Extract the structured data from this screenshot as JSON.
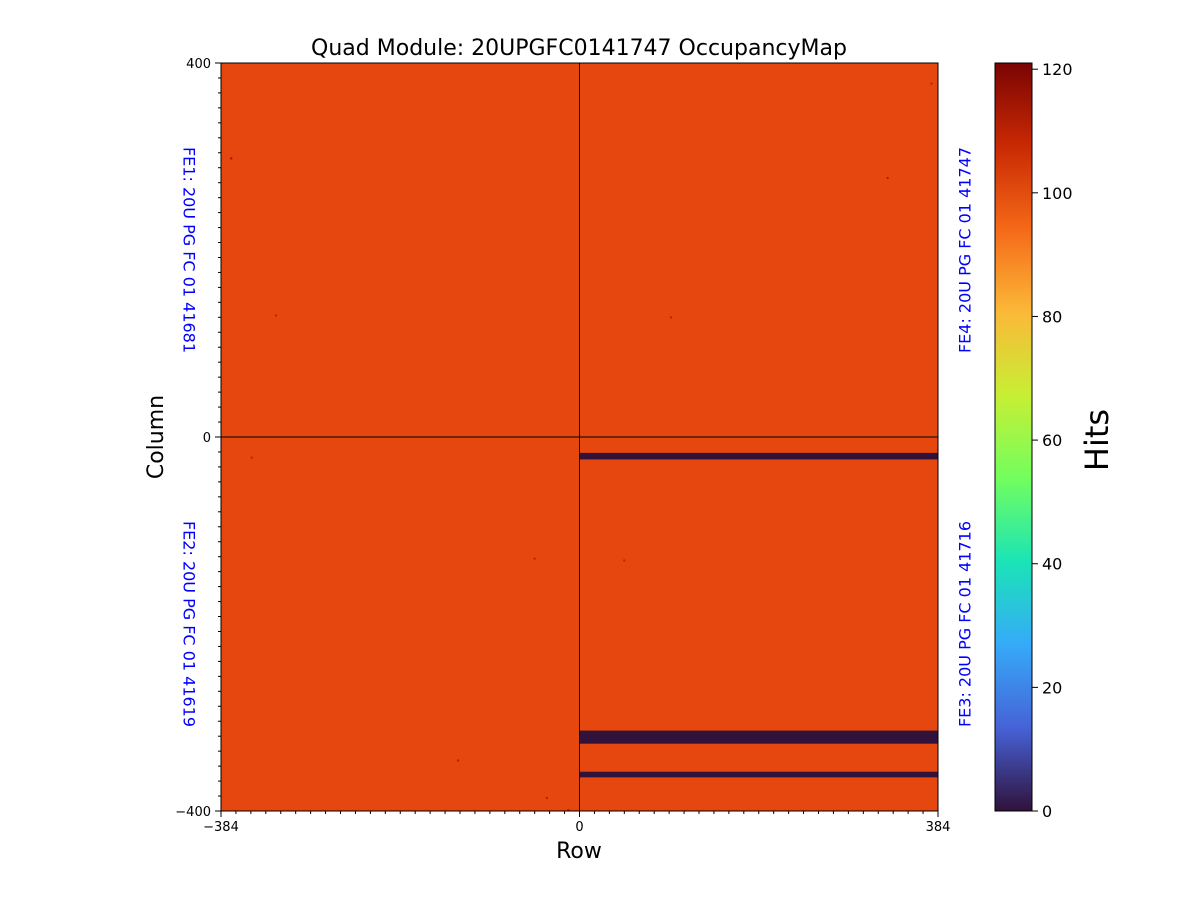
{
  "chart_data": {
    "type": "heatmap",
    "title": "Quad Module: 20UPGFC0141747 OccupancyMap",
    "xlabel": "Row",
    "ylabel": "Column",
    "xlim": [
      -384,
      384
    ],
    "ylim": [
      -400,
      400
    ],
    "x_ticks": [
      "−384",
      "0",
      "384"
    ],
    "y_ticks": [
      "400",
      "0",
      "−400"
    ],
    "colorbar": {
      "label": "Hits",
      "range": [
        0,
        121
      ],
      "ticks": [
        "0",
        "20",
        "40",
        "60",
        "80",
        "100",
        "120"
      ],
      "colormap": "turbo"
    },
    "quadrants": [
      {
        "label": "FE1: 20U PG FC 01 41681",
        "x_range": [
          -384,
          0
        ],
        "y_range": [
          0,
          400
        ],
        "hits": 100
      },
      {
        "label": "FE4: 20U PG FC 01 41747",
        "x_range": [
          0,
          384
        ],
        "y_range": [
          0,
          400
        ],
        "hits": 100
      },
      {
        "label": "FE2: 20U PG FC 01 41619",
        "x_range": [
          -384,
          0
        ],
        "y_range": [
          -400,
          0
        ],
        "hits": 100
      },
      {
        "label": "FE3: 20U PG FC 01 41716",
        "x_range": [
          0,
          384
        ],
        "y_range": [
          -400,
          0
        ],
        "hits": 100
      }
    ],
    "dead_bands": [
      {
        "x_range": [
          0,
          384
        ],
        "y_range": [
          -24,
          -17
        ],
        "hits": 0
      },
      {
        "x_range": [
          0,
          384
        ],
        "y_range": [
          -328,
          -314
        ],
        "hits": 0
      },
      {
        "x_range": [
          0,
          384
        ],
        "y_range": [
          -364,
          -358
        ],
        "hits": 0
      }
    ],
    "hot_pixels": [
      {
        "x": -373,
        "y": 298,
        "hits": 115
      },
      {
        "x": -325,
        "y": 130,
        "hits": 110
      },
      {
        "x": -351,
        "y": -22,
        "hits": 110
      },
      {
        "x": 330,
        "y": 277,
        "hits": 112
      },
      {
        "x": 98,
        "y": 128,
        "hits": 110
      },
      {
        "x": 377,
        "y": 378,
        "hits": 110
      },
      {
        "x": 48,
        "y": -132,
        "hits": 110
      },
      {
        "x": -48,
        "y": -130,
        "hits": 110
      },
      {
        "x": -130,
        "y": -346,
        "hits": 112
      },
      {
        "x": -35,
        "y": -386,
        "hits": 112
      },
      {
        "x": -12,
        "y": -399,
        "hits": 112
      }
    ],
    "colors": {
      "colormap_stops": [
        "#30123b",
        "#4662d7",
        "#36aaf9",
        "#1ae4b6",
        "#72fe5e",
        "#c7ef34",
        "#fbb938",
        "#f56918",
        "#c92903",
        "#7a0403"
      ],
      "quadrant_labels": "#0000ff",
      "base_fill": "#e5470e",
      "dead_fill": "#2b1645"
    }
  }
}
